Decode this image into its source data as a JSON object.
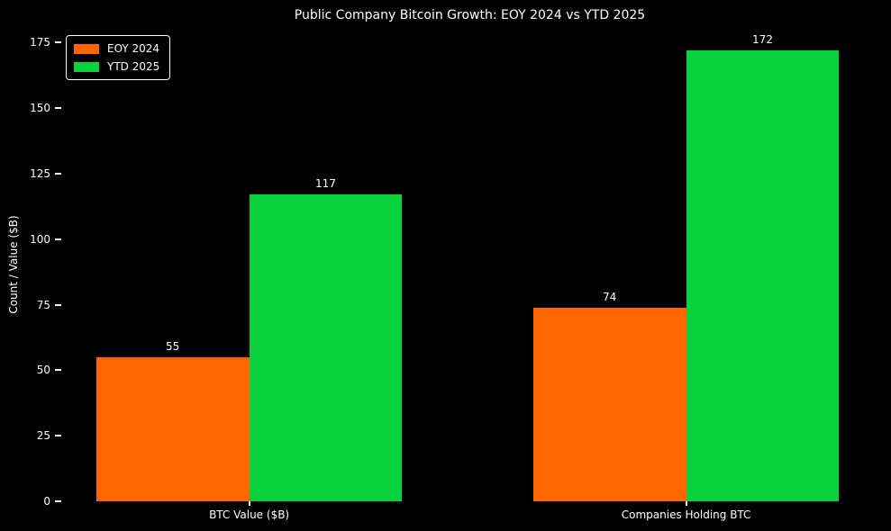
{
  "figure": {
    "background": "#000000",
    "text_color": "#ffffff"
  },
  "chart_data": {
    "type": "bar",
    "title": "Public Company Bitcoin Growth: EOY 2024 vs YTD 2025",
    "xlabel": "",
    "ylabel": "Count / Value ($B)",
    "categories": [
      "BTC Value ($B)",
      "Companies Holding BTC"
    ],
    "series": [
      {
        "name": "EOY 2024",
        "color": "#ff6600",
        "values": [
          55,
          74
        ]
      },
      {
        "name": "YTD 2025",
        "color": "#0ad23c",
        "values": [
          117,
          172
        ]
      }
    ],
    "bar_value_labels": [
      [
        55,
        74
      ],
      [
        117,
        172
      ]
    ],
    "yticks": [
      0,
      25,
      50,
      75,
      100,
      125,
      150,
      175
    ],
    "ylim": [
      0,
      180.6
    ],
    "xlim": [
      -0.43,
      1.44
    ],
    "bar_width": 0.35,
    "grid": false,
    "legend_position": "upper left",
    "legend_entries": [
      "EOY 2024",
      "YTD 2025"
    ]
  }
}
